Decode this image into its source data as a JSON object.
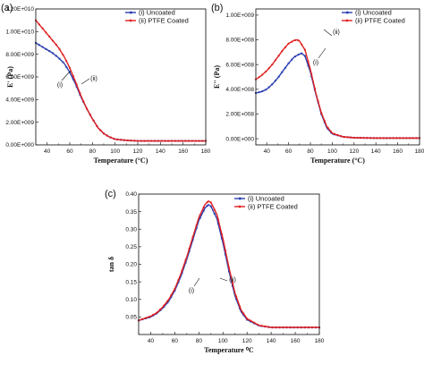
{
  "colors": {
    "uncoated": "#2b3fb0",
    "coated": "#e02020"
  },
  "chart_data": [
    {
      "panel_label": "(a)",
      "type": "line",
      "xlabel": "Temperature (°C)",
      "ylabel": "E' (Pa)",
      "xlim": [
        30,
        180
      ],
      "ylim": [
        0,
        12000000000.0
      ],
      "xticks": [
        "40",
        "60",
        "80",
        "100",
        "120",
        "140",
        "160",
        "180"
      ],
      "yticks": [
        "0.00E+000",
        "2.00E+009",
        "4.00E+009",
        "6.00E+009",
        "8.00E+009",
        "1.00E+010",
        "1.20E+010"
      ],
      "legend": {
        "position": "top-right",
        "entries": [
          "(i) Uncoated",
          "(ii) PTFE Coated"
        ]
      },
      "annotations": [
        "(i)",
        "(ii)"
      ],
      "series": [
        {
          "name": "(i) Uncoated",
          "x": [
            30,
            35,
            40,
            45,
            50,
            55,
            60,
            65,
            70,
            75,
            80,
            85,
            90,
            95,
            100,
            110,
            120,
            140,
            160,
            180
          ],
          "values": [
            9000000000.0,
            8700000000.0,
            8400000000.0,
            8100000000.0,
            7700000000.0,
            7200000000.0,
            6400000000.0,
            5400000000.0,
            4200000000.0,
            3200000000.0,
            2300000000.0,
            1500000000.0,
            1000000000.0,
            700000000.0,
            500000000.0,
            400000000.0,
            350000000.0,
            350000000.0,
            350000000.0,
            350000000.0
          ]
        },
        {
          "name": "(ii) PTFE Coated",
          "x": [
            30,
            35,
            40,
            45,
            50,
            55,
            60,
            65,
            70,
            75,
            80,
            85,
            90,
            95,
            100,
            110,
            120,
            140,
            160,
            180
          ],
          "values": [
            11000000000.0,
            10400000000.0,
            9800000000.0,
            9200000000.0,
            8600000000.0,
            7800000000.0,
            6800000000.0,
            5600000000.0,
            4300000000.0,
            3200000000.0,
            2300000000.0,
            1500000000.0,
            1000000000.0,
            700000000.0,
            500000000.0,
            400000000.0,
            350000000.0,
            350000000.0,
            350000000.0,
            350000000.0
          ]
        }
      ]
    },
    {
      "panel_label": "(b)",
      "type": "line",
      "xlabel": "Temperature (°C)",
      "ylabel": "E'' (Pa)",
      "xlim": [
        30,
        180
      ],
      "ylim": [
        -50000000.0,
        1050000000.0
      ],
      "xticks": [
        "40",
        "60",
        "80",
        "100",
        "120",
        "140",
        "160",
        "180"
      ],
      "yticks": [
        "0.00E+000",
        "2.00E+008",
        "4.00E+008",
        "6.00E+008",
        "8.00E+008",
        "1.00E+009"
      ],
      "legend": {
        "position": "top-right",
        "entries": [
          "(i) Uncoated",
          "(ii) PTFE Coated"
        ]
      },
      "annotations": [
        "(i)",
        "(ii)"
      ],
      "series": [
        {
          "name": "(i) Uncoated",
          "x": [
            30,
            35,
            40,
            45,
            50,
            55,
            60,
            65,
            70,
            72,
            75,
            80,
            85,
            90,
            95,
            100,
            110,
            120,
            140,
            160,
            180
          ],
          "values": [
            370000000.0,
            380000000.0,
            400000000.0,
            440000000.0,
            490000000.0,
            550000000.0,
            610000000.0,
            660000000.0,
            685000000.0,
            690000000.0,
            670000000.0,
            540000000.0,
            360000000.0,
            200000000.0,
            90000000.0,
            40000000.0,
            15000000.0,
            8000000.0,
            5000000.0,
            5000000.0,
            5000000.0
          ]
        },
        {
          "name": "(ii) PTFE Coated",
          "x": [
            30,
            35,
            40,
            45,
            50,
            55,
            60,
            65,
            68,
            70,
            75,
            80,
            85,
            90,
            95,
            100,
            110,
            120,
            140,
            160,
            180
          ],
          "values": [
            480000000.0,
            510000000.0,
            550000000.0,
            600000000.0,
            660000000.0,
            720000000.0,
            770000000.0,
            795000000.0,
            800000000.0,
            790000000.0,
            720000000.0,
            560000000.0,
            370000000.0,
            210000000.0,
            100000000.0,
            45000000.0,
            15000000.0,
            8000000.0,
            5000000.0,
            5000000.0,
            5000000.0
          ]
        }
      ]
    },
    {
      "panel_label": "(c)",
      "type": "line",
      "xlabel": "Temperature ⁰C",
      "ylabel": "tan δ",
      "xlim": [
        30,
        180
      ],
      "ylim": [
        0.0,
        0.4
      ],
      "xticks": [
        "40",
        "60",
        "80",
        "100",
        "120",
        "140",
        "160",
        "180"
      ],
      "yticks": [
        "0.05",
        "0.10",
        "0.15",
        "0.20",
        "0.25",
        "0.30",
        "0.35",
        "0.40"
      ],
      "legend": {
        "position": "top-right",
        "entries": [
          "(i) Uncoated",
          "(ii) PTFE Coated"
        ]
      },
      "annotations": [
        "(i)",
        "(ii)"
      ],
      "series": [
        {
          "name": "(i) Uncoated",
          "x": [
            30,
            35,
            40,
            45,
            50,
            55,
            60,
            65,
            70,
            75,
            80,
            85,
            88,
            90,
            95,
            100,
            105,
            110,
            115,
            120,
            130,
            140,
            160,
            180
          ],
          "values": [
            0.04,
            0.045,
            0.05,
            0.06,
            0.075,
            0.095,
            0.125,
            0.165,
            0.215,
            0.27,
            0.325,
            0.36,
            0.37,
            0.365,
            0.33,
            0.26,
            0.18,
            0.11,
            0.065,
            0.042,
            0.025,
            0.02,
            0.02,
            0.02
          ]
        },
        {
          "name": "(ii) PTFE Coated",
          "x": [
            30,
            35,
            40,
            45,
            50,
            55,
            60,
            65,
            70,
            75,
            80,
            85,
            88,
            90,
            95,
            100,
            105,
            110,
            115,
            120,
            130,
            140,
            160,
            180
          ],
          "values": [
            0.04,
            0.046,
            0.052,
            0.062,
            0.078,
            0.1,
            0.13,
            0.172,
            0.222,
            0.278,
            0.333,
            0.37,
            0.38,
            0.376,
            0.342,
            0.272,
            0.19,
            0.118,
            0.07,
            0.045,
            0.026,
            0.02,
            0.02,
            0.02
          ]
        }
      ]
    }
  ]
}
